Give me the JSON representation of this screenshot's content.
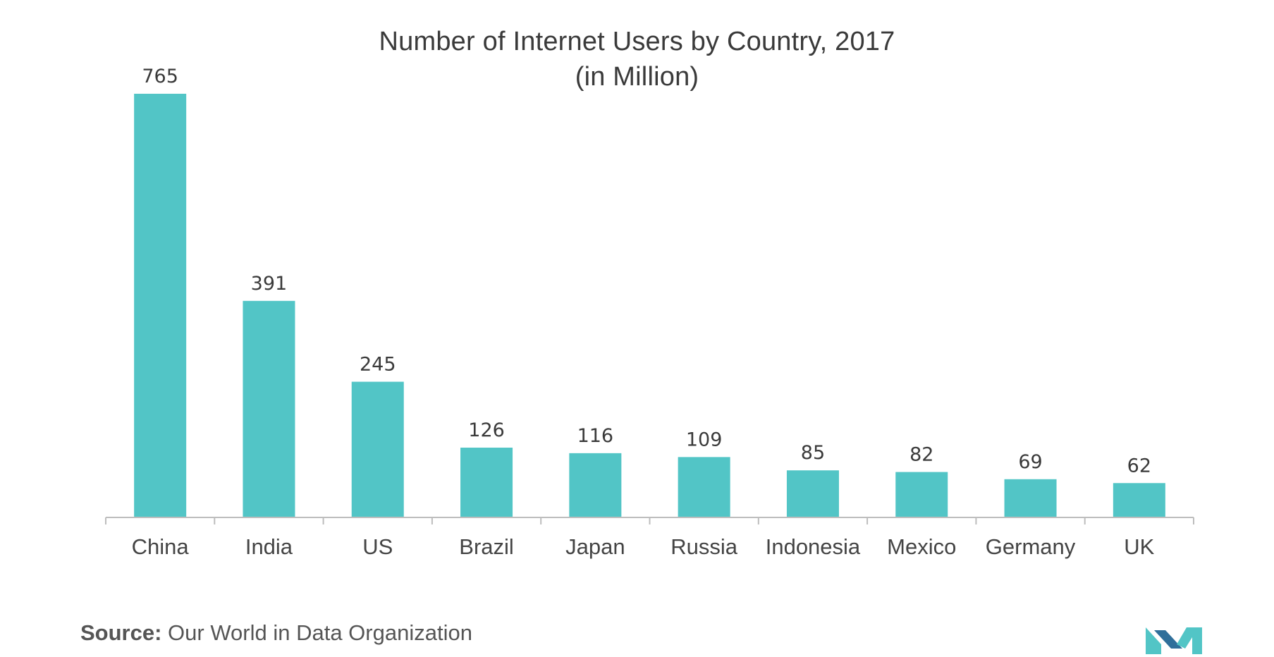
{
  "title": "Number of Internet Users by Country, 2017",
  "subtitle": "(in Million)",
  "source_label": "Source:",
  "source_text": "Our World in Data Organization",
  "colors": {
    "bar": "#52c5c6",
    "axis": "#bdbdbd",
    "logo": "#52c5c6"
  },
  "logo_icon": "mordor-intelligence-logo",
  "chart_data": {
    "type": "bar",
    "title": "Number of Internet Users by Country, 2017",
    "subtitle": "(in Million)",
    "categories": [
      "China",
      "India",
      "US",
      "Brazil",
      "Japan",
      "Russia",
      "Indonesia",
      "Mexico",
      "Germany",
      "UK"
    ],
    "values": [
      765,
      391,
      245,
      126,
      116,
      109,
      85,
      82,
      69,
      62
    ],
    "xlabel": "",
    "ylabel": "",
    "ylim": [
      0,
      765
    ],
    "grid": false,
    "legend": "none",
    "data_labels": true
  }
}
